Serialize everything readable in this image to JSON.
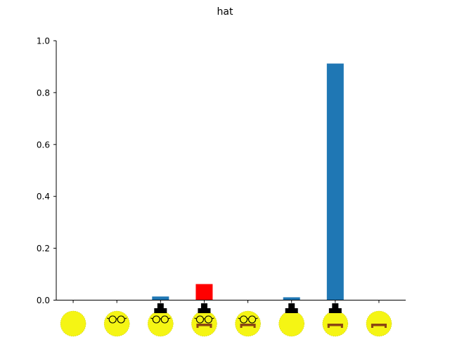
{
  "chart_data": {
    "type": "bar",
    "title": "hat",
    "xlabel": "",
    "ylabel": "",
    "ylim": [
      0,
      1.0
    ],
    "yticks": [
      "0.0",
      "0.2",
      "0.4",
      "0.6",
      "0.8",
      "1.0"
    ],
    "categories": [
      {
        "glasses": false,
        "hat": false,
        "mustache": false
      },
      {
        "glasses": true,
        "hat": false,
        "mustache": false
      },
      {
        "glasses": true,
        "hat": true,
        "mustache": false
      },
      {
        "glasses": true,
        "hat": true,
        "mustache": true
      },
      {
        "glasses": true,
        "hat": false,
        "mustache": true
      },
      {
        "glasses": false,
        "hat": true,
        "mustache": false
      },
      {
        "glasses": false,
        "hat": true,
        "mustache": true
      },
      {
        "glasses": false,
        "hat": false,
        "mustache": true
      }
    ],
    "values": [
      0.0,
      0.0,
      0.014,
      0.062,
      0.0,
      0.011,
      0.912,
      0.0
    ],
    "highlight_index": 3,
    "colors": {
      "bar": "#1f77b4",
      "highlight": "#ff0000",
      "face": "#f5f514",
      "axis": "#000000"
    },
    "grid": false,
    "legend": "none"
  }
}
